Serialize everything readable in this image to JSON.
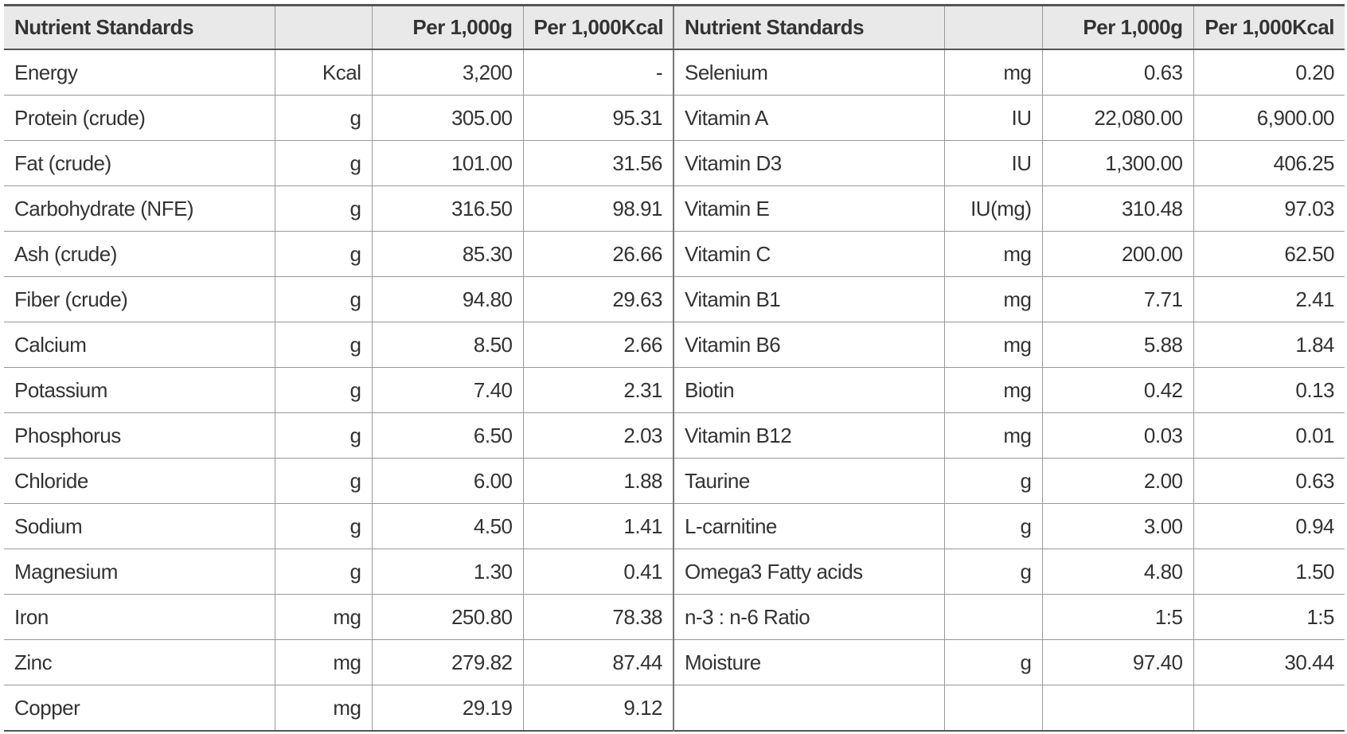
{
  "table": {
    "left": {
      "header": [
        "Nutrient Standards",
        "Per 1,000g",
        "Per 1,000Kcal"
      ],
      "rows": [
        {
          "name": "Energy",
          "unit": "Kcal",
          "per_g": "3,200",
          "per_kcal": "-"
        },
        {
          "name": "Protein (crude)",
          "unit": "g",
          "per_g": "305.00",
          "per_kcal": "95.31"
        },
        {
          "name": "Fat (crude)",
          "unit": "g",
          "per_g": "101.00",
          "per_kcal": "31.56"
        },
        {
          "name": "Carbohydrate (NFE)",
          "unit": "g",
          "per_g": "316.50",
          "per_kcal": "98.91"
        },
        {
          "name": "Ash (crude)",
          "unit": "g",
          "per_g": "85.30",
          "per_kcal": "26.66"
        },
        {
          "name": "Fiber (crude)",
          "unit": "g",
          "per_g": "94.80",
          "per_kcal": "29.63"
        },
        {
          "name": "Calcium",
          "unit": "g",
          "per_g": "8.50",
          "per_kcal": "2.66"
        },
        {
          "name": "Potassium",
          "unit": "g",
          "per_g": "7.40",
          "per_kcal": "2.31"
        },
        {
          "name": "Phosphorus",
          "unit": "g",
          "per_g": "6.50",
          "per_kcal": "2.03"
        },
        {
          "name": "Chloride",
          "unit": "g",
          "per_g": "6.00",
          "per_kcal": "1.88"
        },
        {
          "name": "Sodium",
          "unit": "g",
          "per_g": "4.50",
          "per_kcal": "1.41"
        },
        {
          "name": "Magnesium",
          "unit": "g",
          "per_g": "1.30",
          "per_kcal": "0.41"
        },
        {
          "name": "Iron",
          "unit": "mg",
          "per_g": "250.80",
          "per_kcal": "78.38"
        },
        {
          "name": "Zinc",
          "unit": "mg",
          "per_g": "279.82",
          "per_kcal": "87.44"
        },
        {
          "name": "Copper",
          "unit": "mg",
          "per_g": "29.19",
          "per_kcal": "9.12"
        }
      ]
    },
    "right": {
      "header": [
        "Nutrient Standards",
        "Per 1,000g",
        "Per 1,000Kcal"
      ],
      "rows": [
        {
          "name": "Selenium",
          "unit": "mg",
          "per_g": "0.63",
          "per_kcal": "0.20"
        },
        {
          "name": "Vitamin A",
          "unit": "IU",
          "per_g": "22,080.00",
          "per_kcal": "6,900.00"
        },
        {
          "name": "Vitamin D3",
          "unit": "IU",
          "per_g": "1,300.00",
          "per_kcal": "406.25"
        },
        {
          "name": "Vitamin E",
          "unit": "IU(mg)",
          "per_g": "310.48",
          "per_kcal": "97.03"
        },
        {
          "name": "Vitamin C",
          "unit": "mg",
          "per_g": "200.00",
          "per_kcal": "62.50"
        },
        {
          "name": "Vitamin B1",
          "unit": "mg",
          "per_g": "7.71",
          "per_kcal": "2.41"
        },
        {
          "name": "Vitamin B6",
          "unit": "mg",
          "per_g": "5.88",
          "per_kcal": "1.84"
        },
        {
          "name": "Biotin",
          "unit": "mg",
          "per_g": "0.42",
          "per_kcal": "0.13"
        },
        {
          "name": "Vitamin B12",
          "unit": "mg",
          "per_g": "0.03",
          "per_kcal": "0.01"
        },
        {
          "name": "Taurine",
          "unit": "g",
          "per_g": "2.00",
          "per_kcal": "0.63"
        },
        {
          "name": "L-carnitine",
          "unit": "g",
          "per_g": "3.00",
          "per_kcal": "0.94"
        },
        {
          "name": "Omega3 Fatty acids",
          "unit": "g",
          "per_g": "4.80",
          "per_kcal": "1.50"
        },
        {
          "name": "n-3 : n-6 Ratio",
          "per_g": "1:5",
          "per_kcal": "1:5"
        },
        {
          "name": "Moisture",
          "unit": "g",
          "per_g": "97.40",
          "per_kcal": "30.44"
        }
      ]
    }
  }
}
